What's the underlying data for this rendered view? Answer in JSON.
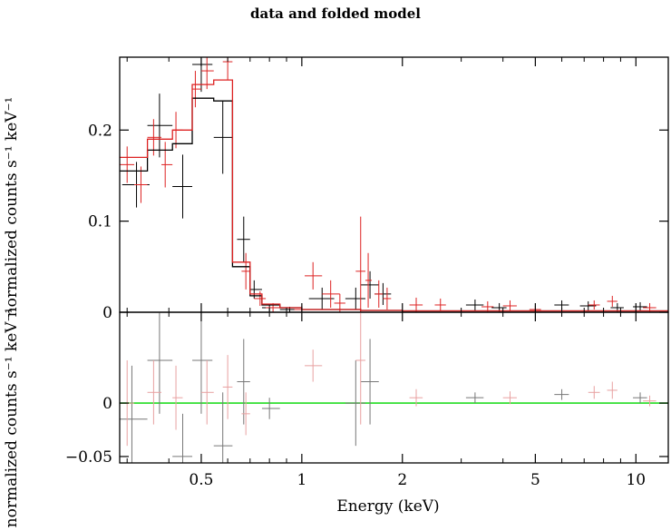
{
  "chart_data": [
    {
      "panel": "top",
      "type": "scatter",
      "title": "data and folded model",
      "xlabel": "",
      "ylabel": "normalized counts s⁻¹ keV⁻¹",
      "xscale": "log",
      "xlim": [
        0.285,
        12.5
      ],
      "ylim": [
        0,
        0.28
      ],
      "yticks": [
        "0",
        "0.1",
        "0.2"
      ],
      "series": [
        {
          "color": "#000000",
          "style": "data with error bars",
          "points": [
            {
              "x": 0.32,
              "xlo": 0.29,
              "xhi": 0.35,
              "y": 0.14,
              "yerr": 0.025
            },
            {
              "x": 0.375,
              "xlo": 0.345,
              "xhi": 0.41,
              "y": 0.205,
              "yerr": 0.035
            },
            {
              "x": 0.44,
              "xlo": 0.41,
              "xhi": 0.47,
              "y": 0.138,
              "yerr": 0.035
            },
            {
              "x": 0.5,
              "xlo": 0.47,
              "xhi": 0.54,
              "y": 0.272,
              "yerr": 0.03
            },
            {
              "x": 0.58,
              "xlo": 0.545,
              "xhi": 0.62,
              "y": 0.192,
              "yerr": 0.04
            },
            {
              "x": 0.67,
              "xlo": 0.64,
              "xhi": 0.7,
              "y": 0.08,
              "yerr": 0.025
            },
            {
              "x": 0.72,
              "xlo": 0.7,
              "xhi": 0.76,
              "y": 0.025,
              "yerr": 0.01
            },
            {
              "x": 0.8,
              "xlo": 0.76,
              "xhi": 0.86,
              "y": 0.005,
              "yerr": 0.004
            },
            {
              "x": 0.92,
              "xlo": 0.86,
              "xhi": 1.0,
              "y": 0.003,
              "yerr": 0.003
            },
            {
              "x": 1.15,
              "xlo": 1.05,
              "xhi": 1.25,
              "y": 0.015,
              "yerr": 0.012
            },
            {
              "x": 1.45,
              "xlo": 1.35,
              "xhi": 1.55,
              "y": 0.015,
              "yerr": 0.012
            },
            {
              "x": 1.6,
              "xlo": 1.5,
              "xhi": 1.7,
              "y": 0.03,
              "yerr": 0.015
            },
            {
              "x": 1.75,
              "xlo": 1.65,
              "xhi": 1.85,
              "y": 0.02,
              "yerr": 0.012
            },
            {
              "x": 3.3,
              "xlo": 3.1,
              "xhi": 3.5,
              "y": 0.008,
              "yerr": 0.006
            },
            {
              "x": 3.9,
              "xlo": 3.7,
              "xhi": 4.1,
              "y": 0.005,
              "yerr": 0.005
            },
            {
              "x": 6.0,
              "xlo": 5.7,
              "xhi": 6.3,
              "y": 0.008,
              "yerr": 0.005
            },
            {
              "x": 7.2,
              "xlo": 6.8,
              "xhi": 7.6,
              "y": 0.007,
              "yerr": 0.005
            },
            {
              "x": 8.8,
              "xlo": 8.4,
              "xhi": 9.2,
              "y": 0.005,
              "yerr": 0.005
            },
            {
              "x": 10.3,
              "xlo": 9.8,
              "xhi": 10.8,
              "y": 0.006,
              "yerr": 0.005
            }
          ]
        },
        {
          "color": "#dd2222",
          "style": "data with error bars",
          "points": [
            {
              "x": 0.3,
              "xlo": 0.285,
              "xhi": 0.315,
              "y": 0.162,
              "yerr": 0.02
            },
            {
              "x": 0.33,
              "xlo": 0.315,
              "xhi": 0.345,
              "y": 0.14,
              "yerr": 0.02
            },
            {
              "x": 0.36,
              "xlo": 0.345,
              "xhi": 0.38,
              "y": 0.192,
              "yerr": 0.02
            },
            {
              "x": 0.39,
              "xlo": 0.38,
              "xhi": 0.41,
              "y": 0.162,
              "yerr": 0.025
            },
            {
              "x": 0.42,
              "xlo": 0.41,
              "xhi": 0.44,
              "y": 0.2,
              "yerr": 0.02
            },
            {
              "x": 0.48,
              "xlo": 0.47,
              "xhi": 0.5,
              "y": 0.245,
              "yerr": 0.02
            },
            {
              "x": 0.52,
              "xlo": 0.5,
              "xhi": 0.545,
              "y": 0.265,
              "yerr": 0.02
            },
            {
              "x": 0.6,
              "xlo": 0.58,
              "xhi": 0.62,
              "y": 0.275,
              "yerr": 0.02
            },
            {
              "x": 0.68,
              "xlo": 0.66,
              "xhi": 0.7,
              "y": 0.045,
              "yerr": 0.02
            },
            {
              "x": 0.75,
              "xlo": 0.72,
              "xhi": 0.78,
              "y": 0.015,
              "yerr": 0.008
            },
            {
              "x": 0.82,
              "xlo": 0.78,
              "xhi": 0.86,
              "y": 0.005,
              "yerr": 0.005
            },
            {
              "x": 1.0,
              "xlo": 0.95,
              "xhi": 1.05,
              "y": 0.003,
              "yerr": 0.004
            },
            {
              "x": 1.08,
              "xlo": 1.02,
              "xhi": 1.15,
              "y": 0.04,
              "yerr": 0.015
            },
            {
              "x": 1.22,
              "xlo": 1.15,
              "xhi": 1.3,
              "y": 0.02,
              "yerr": 0.015
            },
            {
              "x": 1.3,
              "xlo": 1.25,
              "xhi": 1.35,
              "y": 0.01,
              "yerr": 0.01
            },
            {
              "x": 1.5,
              "xlo": 1.45,
              "xhi": 1.55,
              "y": 0.045,
              "yerr": 0.06
            },
            {
              "x": 1.58,
              "xlo": 1.55,
              "xhi": 1.62,
              "y": 0.035,
              "yerr": 0.03
            },
            {
              "x": 1.7,
              "xlo": 1.65,
              "xhi": 1.75,
              "y": 0.02,
              "yerr": 0.015
            },
            {
              "x": 1.8,
              "xlo": 1.75,
              "xhi": 1.85,
              "y": 0.015,
              "yerr": 0.012
            },
            {
              "x": 2.2,
              "xlo": 2.1,
              "xhi": 2.3,
              "y": 0.008,
              "yerr": 0.008
            },
            {
              "x": 2.6,
              "xlo": 2.5,
              "xhi": 2.7,
              "y": 0.008,
              "yerr": 0.007
            },
            {
              "x": 3.6,
              "xlo": 3.45,
              "xhi": 3.75,
              "y": 0.006,
              "yerr": 0.006
            },
            {
              "x": 4.2,
              "xlo": 4.0,
              "xhi": 4.4,
              "y": 0.007,
              "yerr": 0.006
            },
            {
              "x": 5.0,
              "xlo": 4.8,
              "xhi": 5.2,
              "y": 0.003,
              "yerr": 0.004
            },
            {
              "x": 7.5,
              "xlo": 7.2,
              "xhi": 7.8,
              "y": 0.008,
              "yerr": 0.005
            },
            {
              "x": 8.5,
              "xlo": 8.2,
              "xhi": 8.8,
              "y": 0.012,
              "yerr": 0.006
            },
            {
              "x": 11.0,
              "xlo": 10.5,
              "xhi": 11.5,
              "y": 0.005,
              "yerr": 0.005
            }
          ]
        },
        {
          "color": "#000000",
          "style": "model step line",
          "steps": [
            [
              0.285,
              0.155
            ],
            [
              0.345,
              0.178
            ],
            [
              0.41,
              0.185
            ],
            [
              0.47,
              0.235
            ],
            [
              0.545,
              0.232
            ],
            [
              0.62,
              0.05
            ],
            [
              0.7,
              0.018
            ],
            [
              0.76,
              0.008
            ],
            [
              0.86,
              0.005
            ],
            [
              1.0,
              0.003
            ],
            [
              1.5,
              0.002
            ],
            [
              2.0,
              0.0015
            ],
            [
              12.5,
              0.0015
            ]
          ]
        },
        {
          "color": "#dd2222",
          "style": "model step line",
          "steps": [
            [
              0.285,
              0.17
            ],
            [
              0.345,
              0.19
            ],
            [
              0.41,
              0.2
            ],
            [
              0.47,
              0.25
            ],
            [
              0.545,
              0.255
            ],
            [
              0.62,
              0.055
            ],
            [
              0.7,
              0.02
            ],
            [
              0.76,
              0.009
            ],
            [
              0.86,
              0.005
            ],
            [
              1.0,
              0.003
            ],
            [
              1.5,
              0.002
            ],
            [
              2.0,
              0.0015
            ],
            [
              12.5,
              0.0015
            ]
          ]
        }
      ]
    },
    {
      "panel": "bottom",
      "type": "scatter",
      "xlabel": "Energy (keV)",
      "ylabel": "normalized counts s⁻¹ keV⁻¹",
      "xscale": "log",
      "xlim": [
        0.285,
        12.5
      ],
      "ylim": [
        -0.056,
        0.085
      ],
      "yticks": [
        "−0.05",
        "0"
      ],
      "xticks": [
        "0.5",
        "1",
        "2",
        "5",
        "10"
      ],
      "zero_line_color": "#22dd22",
      "series": [
        {
          "color": "#777777",
          "style": "residuals with error bars",
          "points": [
            {
              "x": 0.31,
              "xlo": 0.285,
              "xhi": 0.345,
              "y": -0.015,
              "yerr": 0.05
            },
            {
              "x": 0.375,
              "xlo": 0.345,
              "xhi": 0.41,
              "y": 0.04,
              "yerr": 0.05
            },
            {
              "x": 0.44,
              "xlo": 0.41,
              "xhi": 0.47,
              "y": -0.05,
              "yerr": 0.04
            },
            {
              "x": 0.5,
              "xlo": 0.47,
              "xhi": 0.54,
              "y": 0.04,
              "yerr": 0.05
            },
            {
              "x": 0.58,
              "xlo": 0.545,
              "xhi": 0.62,
              "y": -0.04,
              "yerr": 0.05
            },
            {
              "x": 0.67,
              "xlo": 0.64,
              "xhi": 0.7,
              "y": 0.02,
              "yerr": 0.04
            },
            {
              "x": 0.8,
              "xlo": 0.76,
              "xhi": 0.86,
              "y": -0.005,
              "yerr": 0.01
            },
            {
              "x": 1.45,
              "xlo": 1.35,
              "xhi": 1.55,
              "y": 0.0,
              "yerr": 0.04
            },
            {
              "x": 1.6,
              "xlo": 1.5,
              "xhi": 1.7,
              "y": 0.02,
              "yerr": 0.04
            },
            {
              "x": 3.3,
              "xlo": 3.1,
              "xhi": 3.5,
              "y": 0.005,
              "yerr": 0.005
            },
            {
              "x": 6.0,
              "xlo": 5.7,
              "xhi": 6.3,
              "y": 0.008,
              "yerr": 0.005
            },
            {
              "x": 10.3,
              "xlo": 9.8,
              "xhi": 10.8,
              "y": 0.005,
              "yerr": 0.005
            }
          ]
        },
        {
          "color": "#e8a0a0",
          "style": "residuals with error bars",
          "points": [
            {
              "x": 0.3,
              "xlo": 0.285,
              "xhi": 0.315,
              "y": 0.0,
              "yerr": 0.04
            },
            {
              "x": 0.36,
              "xlo": 0.345,
              "xhi": 0.38,
              "y": 0.01,
              "yerr": 0.03
            },
            {
              "x": 0.42,
              "xlo": 0.41,
              "xhi": 0.44,
              "y": 0.005,
              "yerr": 0.03
            },
            {
              "x": 0.52,
              "xlo": 0.5,
              "xhi": 0.545,
              "y": 0.01,
              "yerr": 0.03
            },
            {
              "x": 0.6,
              "xlo": 0.58,
              "xhi": 0.62,
              "y": 0.015,
              "yerr": 0.03
            },
            {
              "x": 0.68,
              "xlo": 0.66,
              "xhi": 0.7,
              "y": -0.01,
              "yerr": 0.02
            },
            {
              "x": 1.08,
              "xlo": 1.02,
              "xhi": 1.15,
              "y": 0.035,
              "yerr": 0.015
            },
            {
              "x": 1.5,
              "xlo": 1.45,
              "xhi": 1.55,
              "y": 0.04,
              "yerr": 0.06
            },
            {
              "x": 2.2,
              "xlo": 2.1,
              "xhi": 2.3,
              "y": 0.005,
              "yerr": 0.008
            },
            {
              "x": 4.2,
              "xlo": 4.0,
              "xhi": 4.4,
              "y": 0.005,
              "yerr": 0.006
            },
            {
              "x": 7.5,
              "xlo": 7.2,
              "xhi": 7.8,
              "y": 0.01,
              "yerr": 0.006
            },
            {
              "x": 8.5,
              "xlo": 8.2,
              "xhi": 8.8,
              "y": 0.012,
              "yerr": 0.008
            },
            {
              "x": 11.0,
              "xlo": 10.5,
              "xhi": 11.5,
              "y": 0.002,
              "yerr": 0.005
            }
          ]
        }
      ]
    }
  ]
}
